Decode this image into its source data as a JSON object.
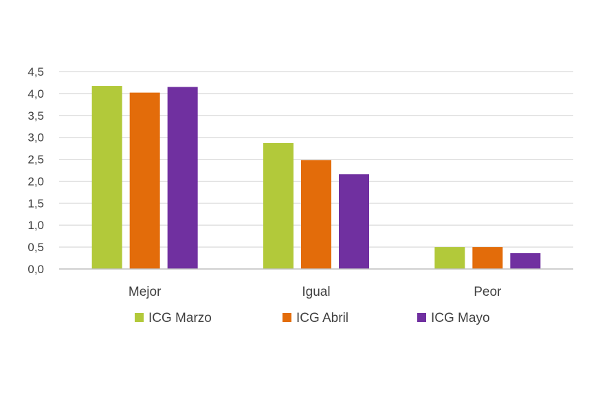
{
  "chart_data": {
    "type": "bar",
    "categories": [
      "Mejor",
      "Igual",
      "Peor"
    ],
    "series": [
      {
        "name": "ICG Marzo",
        "color": "#b2c93a",
        "values": [
          4.17,
          2.87,
          0.5
        ]
      },
      {
        "name": "ICG Abril",
        "color": "#e36c0a",
        "values": [
          4.02,
          2.48,
          0.5
        ]
      },
      {
        "name": "ICG Mayo",
        "color": "#7030a0",
        "values": [
          4.15,
          2.16,
          0.36
        ]
      }
    ],
    "yticks": [
      "0,0",
      "0,5",
      "1,0",
      "1,5",
      "2,0",
      "2,5",
      "3,0",
      "3,5",
      "4,0",
      "4,5"
    ],
    "ylim": [
      0,
      4.5
    ],
    "grid": true,
    "legend_position": "bottom",
    "gridline_color": "#d9d9d9",
    "axis_color": "#bfbfbf"
  }
}
